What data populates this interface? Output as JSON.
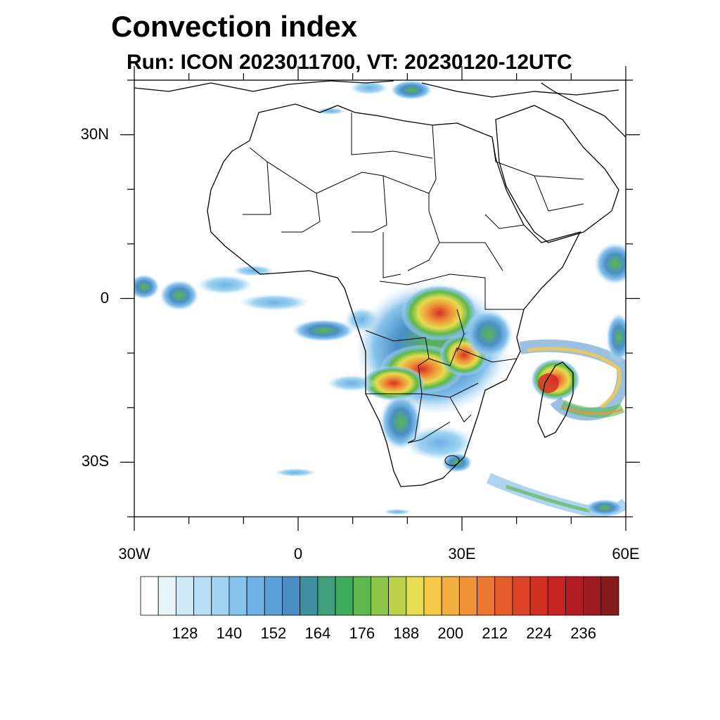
{
  "title": "Convection index",
  "subtitle": "Run: ICON 2023011700,  VT: 20230120-12UTC",
  "map": {
    "projection": "lat-lon",
    "lon_range": [
      -30,
      60
    ],
    "lat_range": [
      -40,
      40
    ],
    "x_ticks": [
      {
        "lon": -30,
        "label": "30W"
      },
      {
        "lon": 0,
        "label": "0"
      },
      {
        "lon": 30,
        "label": "30E"
      },
      {
        "lon": 60,
        "label": "60E"
      }
    ],
    "y_ticks": [
      {
        "lat": 30,
        "label": "30N"
      },
      {
        "lat": 0,
        "label": "0"
      },
      {
        "lat": -30,
        "label": "30S"
      }
    ]
  },
  "colorbar": {
    "colors": [
      "#ffffff",
      "#e8f4fb",
      "#cfe8f7",
      "#b7def5",
      "#9fd4f2",
      "#86c2ec",
      "#6eb1e4",
      "#5a9fd8",
      "#4a8ec6",
      "#3f8fa0",
      "#3f9e7c",
      "#3fad5e",
      "#5cb84a",
      "#8ec448",
      "#bcd049",
      "#e5dc4e",
      "#f6c94b",
      "#f4ad41",
      "#ef9238",
      "#ec7730",
      "#e45c2b",
      "#dd4427",
      "#d33025",
      "#c62324",
      "#b31c23",
      "#9d1a20",
      "#871a1d"
    ],
    "tick_labels": [
      "128",
      "140",
      "152",
      "164",
      "176",
      "188",
      "200",
      "212",
      "224",
      "236"
    ]
  },
  "regions": [
    {
      "name": "central-africa-convection",
      "lon": 26,
      "lat": -12,
      "intensity": "high"
    },
    {
      "name": "madagascar-convection",
      "lon": 47,
      "lat": -16,
      "intensity": "high"
    },
    {
      "name": "atlantic-itcz",
      "lon": -10,
      "lat": -2,
      "intensity": "low"
    },
    {
      "name": "east-indian-ocean-band",
      "lon": 55,
      "lat": -18,
      "intensity": "medium"
    },
    {
      "name": "southern-ocean-band",
      "lon": 50,
      "lat": -37,
      "intensity": "medium"
    }
  ]
}
